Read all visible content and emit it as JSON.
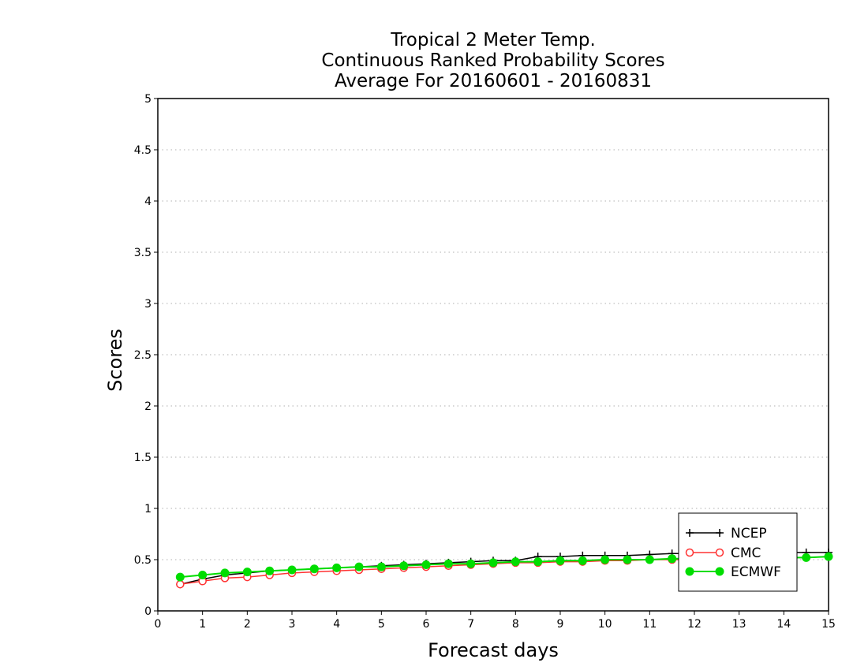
{
  "chart_data": {
    "type": "line",
    "title": [
      "Tropical 2 Meter Temp.",
      "Continuous Ranked Probability Scores",
      "Average For 20160601 - 20160831"
    ],
    "xlabel": "Forecast days",
    "ylabel": "Scores",
    "xlim": [
      0,
      15
    ],
    "ylim": [
      0,
      5
    ],
    "x_ticks": [
      "0",
      "1",
      "2",
      "3",
      "4",
      "5",
      "6",
      "7",
      "8",
      "9",
      "10",
      "11",
      "12",
      "13",
      "14",
      "15"
    ],
    "y_ticks": [
      "0",
      "0.5",
      "1",
      "1.5",
      "2",
      "2.5",
      "3",
      "3.5",
      "4",
      "4.5",
      "5"
    ],
    "grid": "horizontal dotted",
    "legend_position": "bottom-right",
    "x": [
      0.5,
      1,
      1.5,
      2,
      2.5,
      3,
      3.5,
      4,
      4.5,
      5,
      5.5,
      6,
      6.5,
      7,
      7.5,
      8,
      8.5,
      9,
      9.5,
      10,
      10.5,
      11,
      11.5,
      12,
      12.5,
      13,
      13.5,
      14,
      14.5,
      15
    ],
    "series": [
      {
        "name": "NCEP",
        "color": "#000000",
        "marker": "plus",
        "values": [
          0.26,
          0.31,
          0.35,
          0.37,
          0.39,
          0.4,
          0.41,
          0.42,
          0.43,
          0.44,
          0.45,
          0.46,
          0.47,
          0.48,
          0.49,
          0.49,
          0.53,
          0.53,
          0.54,
          0.54,
          0.54,
          0.55,
          0.56,
          0.56,
          0.56,
          0.57,
          0.57,
          0.57,
          0.57,
          0.57
        ]
      },
      {
        "name": "CMC",
        "color": "#ff3333",
        "marker": "open-circle",
        "values": [
          0.26,
          0.29,
          0.32,
          0.33,
          0.35,
          0.37,
          0.38,
          0.39,
          0.4,
          0.41,
          0.42,
          0.43,
          0.44,
          0.45,
          0.46,
          0.47,
          0.47,
          0.48,
          0.48,
          0.49,
          0.49,
          0.5,
          0.5,
          0.5,
          0.51,
          0.51,
          0.52,
          0.52,
          0.52,
          0.53
        ]
      },
      {
        "name": "ECMWF",
        "color": "#00dd00",
        "marker": "filled-circle",
        "values": [
          0.33,
          0.35,
          0.37,
          0.38,
          0.39,
          0.4,
          0.41,
          0.42,
          0.43,
          0.43,
          0.44,
          0.45,
          0.46,
          0.46,
          0.47,
          0.48,
          0.48,
          0.49,
          0.49,
          0.5,
          0.5,
          0.5,
          0.51,
          0.51,
          0.51,
          0.51,
          0.52,
          0.52,
          0.52,
          0.53
        ]
      }
    ]
  }
}
